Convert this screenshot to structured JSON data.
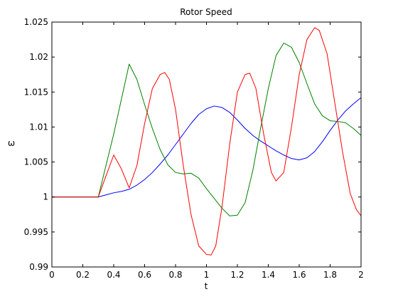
{
  "chart_data": {
    "type": "line",
    "title": "Rotor Speed",
    "xlabel": "t",
    "ylabel": "ω",
    "xlim": [
      0,
      2
    ],
    "ylim": [
      0.99,
      1.025
    ],
    "grid": false,
    "legend": "none",
    "x_ticks": [
      "0",
      "0.2",
      "0.4",
      "0.6",
      "0.8",
      "1",
      "1.2",
      "1.4",
      "1.6",
      "1.8",
      "2"
    ],
    "y_ticks": [
      "0.99",
      "0.995",
      "1",
      "1.005",
      "1.01",
      "1.015",
      "1.02",
      "1.025"
    ],
    "series": [
      {
        "color": "#0000ff",
        "points": [
          [
            0,
            1
          ],
          [
            0.3,
            1
          ],
          [
            0.35,
            1.0003
          ],
          [
            0.4,
            1.0006
          ],
          [
            0.45,
            1.0008
          ],
          [
            0.5,
            1.0011
          ],
          [
            0.55,
            1.0017
          ],
          [
            0.6,
            1.0025
          ],
          [
            0.65,
            1.0035
          ],
          [
            0.7,
            1.0047
          ],
          [
            0.75,
            1.006
          ],
          [
            0.8,
            1.0075
          ],
          [
            0.85,
            1.009
          ],
          [
            0.9,
            1.0105
          ],
          [
            0.95,
            1.0118
          ],
          [
            1.0,
            1.0126
          ],
          [
            1.05,
            1.013
          ],
          [
            1.1,
            1.0128
          ],
          [
            1.15,
            1.0121
          ],
          [
            1.2,
            1.011
          ],
          [
            1.25,
            1.0098
          ],
          [
            1.3,
            1.0088
          ],
          [
            1.35,
            1.008
          ],
          [
            1.4,
            1.0073
          ],
          [
            1.45,
            1.0066
          ],
          [
            1.5,
            1.006
          ],
          [
            1.55,
            1.0055
          ],
          [
            1.6,
            1.0053
          ],
          [
            1.65,
            1.0056
          ],
          [
            1.7,
            1.0065
          ],
          [
            1.75,
            1.0079
          ],
          [
            1.8,
            1.0095
          ],
          [
            1.85,
            1.011
          ],
          [
            1.9,
            1.0123
          ],
          [
            1.95,
            1.0133
          ],
          [
            2.0,
            1.0142
          ]
        ]
      },
      {
        "color": "#008000",
        "points": [
          [
            0,
            1
          ],
          [
            0.3,
            1
          ],
          [
            0.35,
            1.0045
          ],
          [
            0.4,
            1.009
          ],
          [
            0.45,
            1.014
          ],
          [
            0.5,
            1.019
          ],
          [
            0.55,
            1.0168
          ],
          [
            0.6,
            1.0132
          ],
          [
            0.65,
            1.0098
          ],
          [
            0.7,
            1.0068
          ],
          [
            0.75,
            1.0046
          ],
          [
            0.8,
            1.0035
          ],
          [
            0.85,
            1.0033
          ],
          [
            0.9,
            1.0034
          ],
          [
            0.95,
            1.0027
          ],
          [
            1.0,
            1.0012
          ],
          [
            1.05,
            0.9998
          ],
          [
            1.1,
            0.9984
          ],
          [
            1.15,
            0.9973
          ],
          [
            1.2,
            0.9974
          ],
          [
            1.25,
            0.9992
          ],
          [
            1.3,
            1.0038
          ],
          [
            1.35,
            1.0098
          ],
          [
            1.4,
            1.0155
          ],
          [
            1.45,
            1.0202
          ],
          [
            1.5,
            1.022
          ],
          [
            1.55,
            1.0214
          ],
          [
            1.6,
            1.0192
          ],
          [
            1.65,
            1.0162
          ],
          [
            1.7,
            1.0133
          ],
          [
            1.75,
            1.0116
          ],
          [
            1.8,
            1.0109
          ],
          [
            1.85,
            1.0108
          ],
          [
            1.9,
            1.0106
          ],
          [
            1.95,
            1.0098
          ],
          [
            2.0,
            1.0088
          ]
        ]
      },
      {
        "color": "#ff0000",
        "points": [
          [
            0,
            1
          ],
          [
            0.3,
            1
          ],
          [
            0.35,
            1.003
          ],
          [
            0.4,
            1.006
          ],
          [
            0.45,
            1.004
          ],
          [
            0.5,
            1.0013
          ],
          [
            0.55,
            1.0045
          ],
          [
            0.6,
            1.0105
          ],
          [
            0.65,
            1.0155
          ],
          [
            0.7,
            1.0175
          ],
          [
            0.73,
            1.0178
          ],
          [
            0.76,
            1.0168
          ],
          [
            0.8,
            1.0125
          ],
          [
            0.85,
            1.0045
          ],
          [
            0.9,
            0.9975
          ],
          [
            0.95,
            0.993
          ],
          [
            1.0,
            0.9918
          ],
          [
            1.03,
            0.9917
          ],
          [
            1.06,
            0.993
          ],
          [
            1.1,
            0.9985
          ],
          [
            1.15,
            1.0075
          ],
          [
            1.2,
            1.015
          ],
          [
            1.25,
            1.0175
          ],
          [
            1.28,
            1.0177
          ],
          [
            1.32,
            1.0155
          ],
          [
            1.37,
            1.009
          ],
          [
            1.42,
            1.0035
          ],
          [
            1.45,
            1.0023
          ],
          [
            1.5,
            1.0035
          ],
          [
            1.55,
            1.01
          ],
          [
            1.6,
            1.0175
          ],
          [
            1.65,
            1.0225
          ],
          [
            1.7,
            1.0242
          ],
          [
            1.73,
            1.0238
          ],
          [
            1.78,
            1.0205
          ],
          [
            1.83,
            1.0135
          ],
          [
            1.88,
            1.0065
          ],
          [
            1.93,
            1.0005
          ],
          [
            1.97,
            0.9982
          ],
          [
            2.0,
            0.9973
          ]
        ]
      }
    ]
  }
}
